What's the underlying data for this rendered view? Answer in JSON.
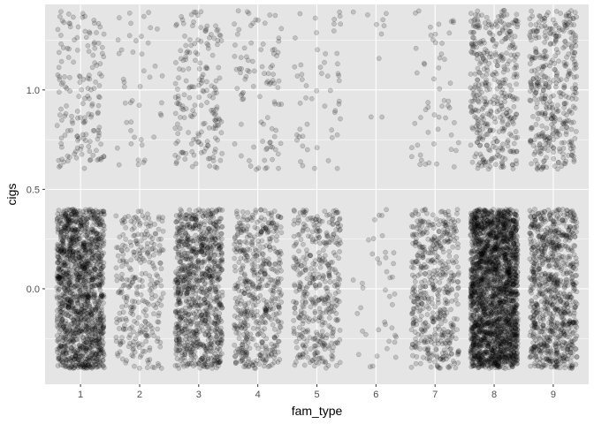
{
  "chart_data": {
    "type": "scatter",
    "title": "",
    "xlabel": "fam_type",
    "ylabel": "cigs",
    "x_categories": [
      "1",
      "2",
      "3",
      "4",
      "5",
      "6",
      "7",
      "8",
      "9"
    ],
    "x_ticks": [
      {
        "value": 1,
        "label": "1"
      },
      {
        "value": 2,
        "label": "2"
      },
      {
        "value": 3,
        "label": "3"
      },
      {
        "value": 4,
        "label": "4"
      },
      {
        "value": 5,
        "label": "5"
      },
      {
        "value": 6,
        "label": "6"
      },
      {
        "value": 7,
        "label": "7"
      },
      {
        "value": 8,
        "label": "8"
      },
      {
        "value": 9,
        "label": "9"
      }
    ],
    "y_ticks": [
      {
        "value": 0.0,
        "label": "0.0"
      },
      {
        "value": 0.5,
        "label": "0.5"
      },
      {
        "value": 1.0,
        "label": "1.0"
      }
    ],
    "xlim": [
      0.4,
      9.6
    ],
    "ylim": [
      -0.48,
      1.43
    ],
    "jitter": {
      "width": 0.4,
      "height": 0.4
    },
    "point_style": {
      "color": "#000000",
      "alpha": 0.16,
      "stroke_alpha": 0.25
    },
    "panel_background": "#e5e5e5",
    "grid": true,
    "grid_color": "#ffffff",
    "legend": "none",
    "series": [
      {
        "fam_type": 1,
        "points_at_cigs_0": 1450,
        "points_at_cigs_1": 160
      },
      {
        "fam_type": 2,
        "points_at_cigs_0": 290,
        "points_at_cigs_1": 45
      },
      {
        "fam_type": 3,
        "points_at_cigs_0": 940,
        "points_at_cigs_1": 180
      },
      {
        "fam_type": 4,
        "points_at_cigs_0": 510,
        "points_at_cigs_1": 95
      },
      {
        "fam_type": 5,
        "points_at_cigs_0": 400,
        "points_at_cigs_1": 55
      },
      {
        "fam_type": 6,
        "points_at_cigs_0": 42,
        "points_at_cigs_1": 10
      },
      {
        "fam_type": 7,
        "points_at_cigs_0": 480,
        "points_at_cigs_1": 55
      },
      {
        "fam_type": 8,
        "points_at_cigs_0": 2300,
        "points_at_cigs_1": 390
      },
      {
        "fam_type": 9,
        "points_at_cigs_0": 880,
        "points_at_cigs_1": 400
      }
    ]
  }
}
